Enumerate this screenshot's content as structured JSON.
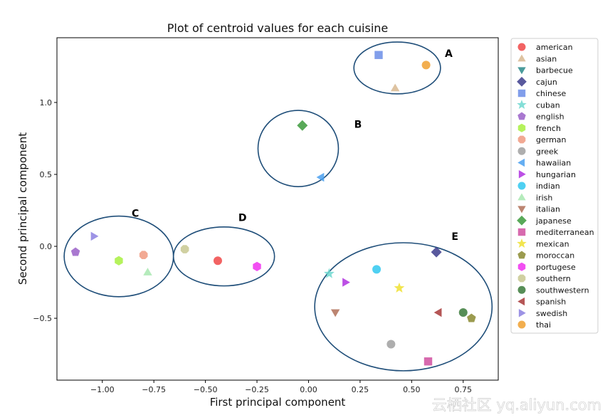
{
  "chart_data": {
    "type": "scatter",
    "title": "Plot of centroid values for each cuisine",
    "xlabel": "First principal component",
    "ylabel": "Second principal component",
    "xlim": [
      -1.22,
      0.92
    ],
    "ylim": [
      -0.93,
      1.45
    ],
    "xticks": [
      {
        "value": -1.0,
        "label": "−1.00"
      },
      {
        "value": -0.75,
        "label": "−0.75"
      },
      {
        "value": -0.5,
        "label": "−0.50"
      },
      {
        "value": -0.25,
        "label": "−0.25"
      },
      {
        "value": 0.0,
        "label": "0.00"
      },
      {
        "value": 0.25,
        "label": "0.25"
      },
      {
        "value": 0.5,
        "label": "0.50"
      },
      {
        "value": 0.75,
        "label": "0.75"
      }
    ],
    "yticks": [
      {
        "value": 1.0,
        "label": "1.0"
      },
      {
        "value": 0.5,
        "label": "0.5"
      },
      {
        "value": 0.0,
        "label": "0.0"
      },
      {
        "value": -0.5,
        "label": "−0.5"
      }
    ],
    "legend_position": "right, outside plot",
    "series": [
      {
        "name": "american",
        "marker": "circle",
        "color": "#f04848",
        "x": -0.44,
        "y": -0.1
      },
      {
        "name": "asian",
        "marker": "triangle-up",
        "color": "#d8b890",
        "x": 0.42,
        "y": 1.1
      },
      {
        "name": "barbecue",
        "marker": "triangle-down",
        "color": "#2a8a8a",
        "x": null,
        "y": null
      },
      {
        "name": "cajun",
        "marker": "diamond",
        "color": "#3c3c8c",
        "x": 0.62,
        "y": -0.04
      },
      {
        "name": "chinese",
        "marker": "square",
        "color": "#6b8de8",
        "x": 0.34,
        "y": 1.33
      },
      {
        "name": "cuban",
        "marker": "star",
        "color": "#6ed8d0",
        "x": 0.1,
        "y": -0.19
      },
      {
        "name": "english",
        "marker": "pentagon",
        "color": "#9a60c8",
        "x": -1.13,
        "y": -0.04
      },
      {
        "name": "french",
        "marker": "hexagon",
        "color": "#a8f040",
        "x": -0.92,
        "y": -0.1
      },
      {
        "name": "german",
        "marker": "octagon",
        "color": "#f09a80",
        "x": -0.8,
        "y": -0.06
      },
      {
        "name": "greek",
        "marker": "circle",
        "color": "#a0a0a0",
        "x": 0.4,
        "y": -0.68
      },
      {
        "name": "hawaiian",
        "marker": "triangle-left",
        "color": "#4aa0f0",
        "x": 0.06,
        "y": 0.48
      },
      {
        "name": "hungarian",
        "marker": "triangle-right",
        "color": "#b030e0",
        "x": 0.18,
        "y": -0.25
      },
      {
        "name": "indian",
        "marker": "circle",
        "color": "#30c8f0",
        "x": 0.33,
        "y": -0.16
      },
      {
        "name": "irish",
        "marker": "triangle-up",
        "color": "#a8e8b0",
        "x": -0.78,
        "y": -0.18
      },
      {
        "name": "italian",
        "marker": "triangle-down",
        "color": "#b07058",
        "x": 0.13,
        "y": -0.46
      },
      {
        "name": "japanese",
        "marker": "diamond",
        "color": "#3c9a3c",
        "x": -0.03,
        "y": 0.84
      },
      {
        "name": "mediterranean",
        "marker": "square",
        "color": "#d050a0",
        "x": 0.58,
        "y": -0.8
      },
      {
        "name": "mexican",
        "marker": "star",
        "color": "#f0e030",
        "x": 0.44,
        "y": -0.29
      },
      {
        "name": "moroccan",
        "marker": "pentagon",
        "color": "#8a8a30",
        "x": 0.79,
        "y": -0.5
      },
      {
        "name": "portugese",
        "marker": "hexagon",
        "color": "#f030f0",
        "x": -0.25,
        "y": -0.14
      },
      {
        "name": "southern",
        "marker": "octagon",
        "color": "#c8c890",
        "x": -0.6,
        "y": -0.02
      },
      {
        "name": "southwestern",
        "marker": "circle",
        "color": "#3a7a3a",
        "x": 0.75,
        "y": -0.46
      },
      {
        "name": "spanish",
        "marker": "triangle-left",
        "color": "#a83838",
        "x": 0.63,
        "y": -0.46
      },
      {
        "name": "swedish",
        "marker": "triangle-right",
        "color": "#8c80e0",
        "x": -1.04,
        "y": 0.07
      },
      {
        "name": "thai",
        "marker": "circle",
        "color": "#f0a030",
        "x": 0.57,
        "y": 1.26
      }
    ],
    "annotations": [
      {
        "label": "A",
        "center": [
          0.43,
          1.24
        ],
        "radius_x": 0.21,
        "radius_y": 0.18,
        "label_at": [
          0.68,
          1.34
        ]
      },
      {
        "label": "B",
        "center": [
          -0.05,
          0.68
        ],
        "radius_x": 0.195,
        "radius_y": 0.265,
        "label_at": [
          0.24,
          0.85
        ]
      },
      {
        "label": "C",
        "center": [
          -0.92,
          -0.07
        ],
        "radius_x": 0.265,
        "radius_y": 0.28,
        "label_at": [
          -0.84,
          0.23
        ]
      },
      {
        "label": "D",
        "center": [
          -0.41,
          -0.07
        ],
        "radius_x": 0.245,
        "radius_y": 0.205,
        "label_at": [
          -0.32,
          0.2
        ]
      },
      {
        "label": "E",
        "center": [
          0.46,
          -0.42
        ],
        "radius_x": 0.43,
        "radius_y": 0.445,
        "label_at": [
          0.71,
          0.07
        ]
      }
    ]
  },
  "watermark": "云栖社区 yq.aliyun.com"
}
